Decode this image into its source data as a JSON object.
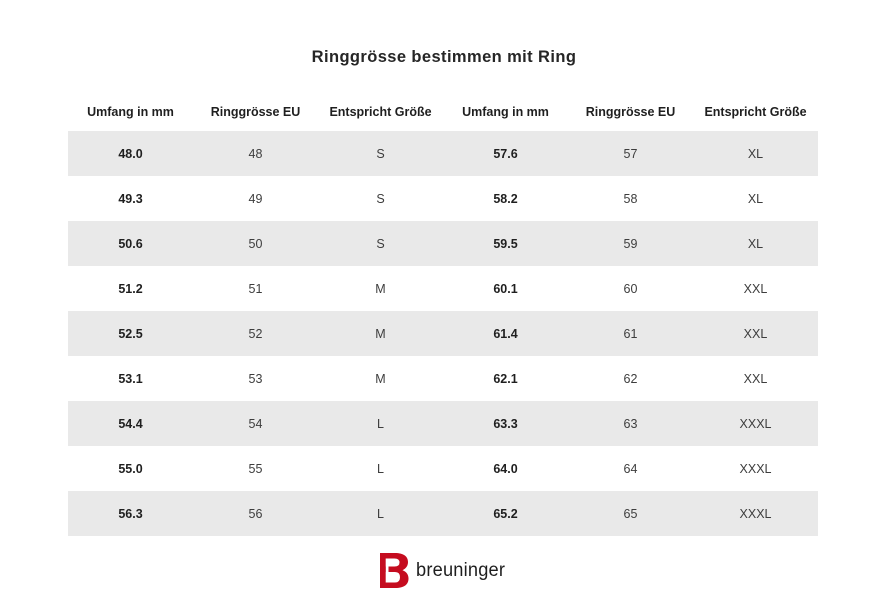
{
  "title": "Ringgrösse bestimmen mit Ring",
  "table": {
    "headers": [
      "Umfang in mm",
      "Ringgrösse EU",
      "Entspricht Größe",
      "Umfang in mm",
      "Ringgrösse EU",
      "Entspricht Größe"
    ],
    "rows": [
      [
        "48.0",
        "48",
        "S",
        "57.6",
        "57",
        "XL"
      ],
      [
        "49.3",
        "49",
        "S",
        "58.2",
        "58",
        "XL"
      ],
      [
        "50.6",
        "50",
        "S",
        "59.5",
        "59",
        "XL"
      ],
      [
        "51.2",
        "51",
        "M",
        "60.1",
        "60",
        "XXL"
      ],
      [
        "52.5",
        "52",
        "M",
        "61.4",
        "61",
        "XXL"
      ],
      [
        "53.1",
        "53",
        "M",
        "62.1",
        "62",
        "XXL"
      ],
      [
        "54.4",
        "54",
        "L",
        "63.3",
        "63",
        "XXXL"
      ],
      [
        "55.0",
        "55",
        "L",
        "64.0",
        "64",
        "XXXL"
      ],
      [
        "56.3",
        "56",
        "L",
        "65.2",
        "65",
        "XXXL"
      ]
    ]
  },
  "logo": {
    "brand": "breuninger",
    "icon": "breuninger-b-icon",
    "accent_color": "#C50C1F"
  },
  "colors": {
    "row_alt": "#E9E9E9",
    "text_dark": "#1f1f1f",
    "text_regular": "#3d3d3d",
    "background": "#FFFFFF"
  }
}
